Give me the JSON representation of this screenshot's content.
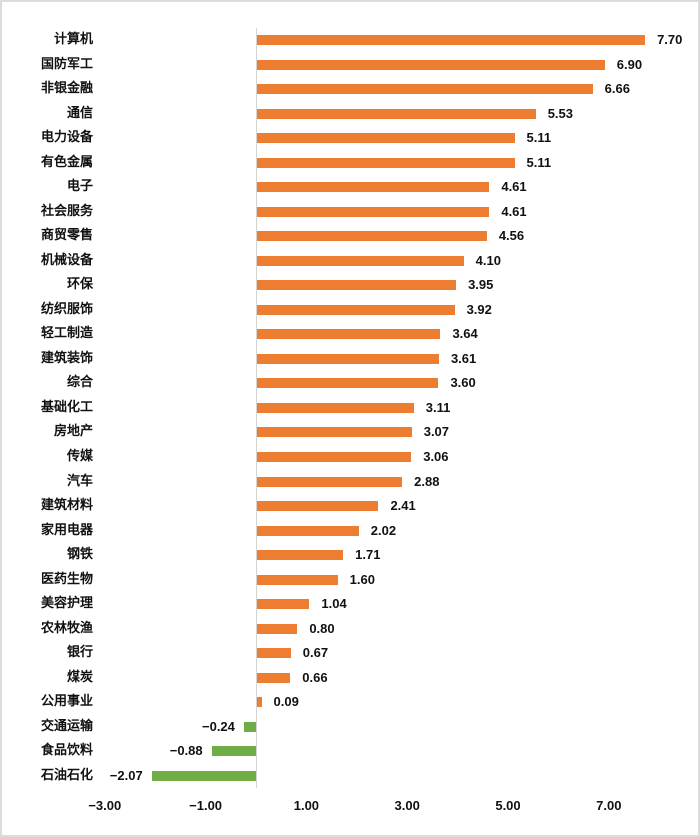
{
  "chart_data": {
    "type": "bar",
    "orientation": "horizontal",
    "title": "",
    "xlabel": "",
    "ylabel": "",
    "xlim": [
      -3.0,
      8.0
    ],
    "x_ticks": [
      "-3.00",
      "-1.00",
      "1.00",
      "3.00",
      "5.00",
      "7.00"
    ],
    "grid": false,
    "legend": null,
    "colors": {
      "positive": "#ED7D31",
      "negative": "#70AD47",
      "axis": "#D4D4D4"
    },
    "categories": [
      "计算机",
      "国防军工",
      "非银金融",
      "通信",
      "电力设备",
      "有色金属",
      "电子",
      "社会服务",
      "商贸零售",
      "机械设备",
      "环保",
      "纺织服饰",
      "轻工制造",
      "建筑装饰",
      "综合",
      "基础化工",
      "房地产",
      "传媒",
      "汽车",
      "建筑材料",
      "家用电器",
      "钢铁",
      "医药生物",
      "美容护理",
      "农林牧渔",
      "银行",
      "煤炭",
      "公用事业",
      "交通运输",
      "食品饮料",
      "石油石化"
    ],
    "values": [
      7.7,
      6.9,
      6.66,
      5.53,
      5.11,
      5.11,
      4.61,
      4.61,
      4.56,
      4.1,
      3.95,
      3.92,
      3.64,
      3.61,
      3.6,
      3.11,
      3.07,
      3.06,
      2.88,
      2.41,
      2.02,
      1.71,
      1.6,
      1.04,
      0.8,
      0.67,
      0.66,
      0.09,
      -0.24,
      -0.88,
      -2.07
    ],
    "labels": [
      "7.70",
      "6.90",
      "6.66",
      "5.53",
      "5.11",
      "5.11",
      "4.61",
      "4.61",
      "4.56",
      "4.10",
      "3.95",
      "3.92",
      "3.64",
      "3.61",
      "3.60",
      "3.11",
      "3.07",
      "3.06",
      "2.88",
      "2.41",
      "2.02",
      "1.71",
      "1.60",
      "1.04",
      "0.80",
      "0.67",
      "0.66",
      "0.09",
      "−0.24",
      "−0.88",
      "−2.07"
    ]
  }
}
